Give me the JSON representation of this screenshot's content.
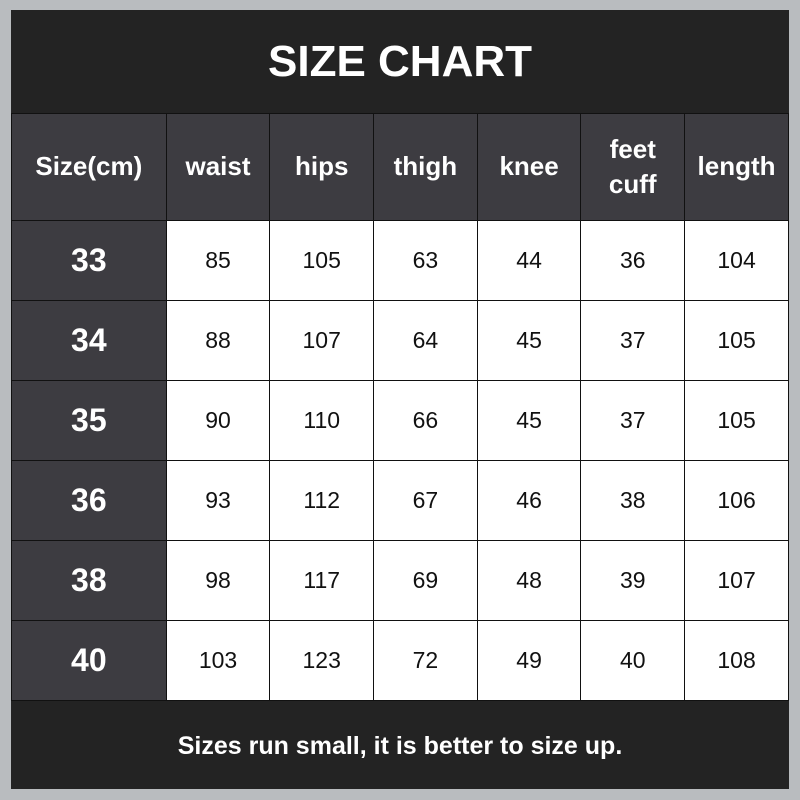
{
  "title": "SIZE CHART",
  "headers": [
    "Size(cm)",
    "waist",
    "hips",
    "thigh",
    "knee",
    "feet cuff",
    "length"
  ],
  "rows": [
    {
      "size": "33",
      "values": [
        "85",
        "105",
        "63",
        "44",
        "36",
        "104"
      ]
    },
    {
      "size": "34",
      "values": [
        "88",
        "107",
        "64",
        "45",
        "37",
        "105"
      ]
    },
    {
      "size": "35",
      "values": [
        "90",
        "110",
        "66",
        "45",
        "37",
        "105"
      ]
    },
    {
      "size": "36",
      "values": [
        "93",
        "112",
        "67",
        "46",
        "38",
        "106"
      ]
    },
    {
      "size": "38",
      "values": [
        "98",
        "117",
        "69",
        "48",
        "39",
        "107"
      ]
    },
    {
      "size": "40",
      "values": [
        "103",
        "123",
        "72",
        "49",
        "40",
        "108"
      ]
    }
  ],
  "footer": "Sizes run small, it is better to size up.",
  "colors": {
    "background": "#232323",
    "header_cell": "#3d3c41",
    "border": "#b9bcbf"
  }
}
